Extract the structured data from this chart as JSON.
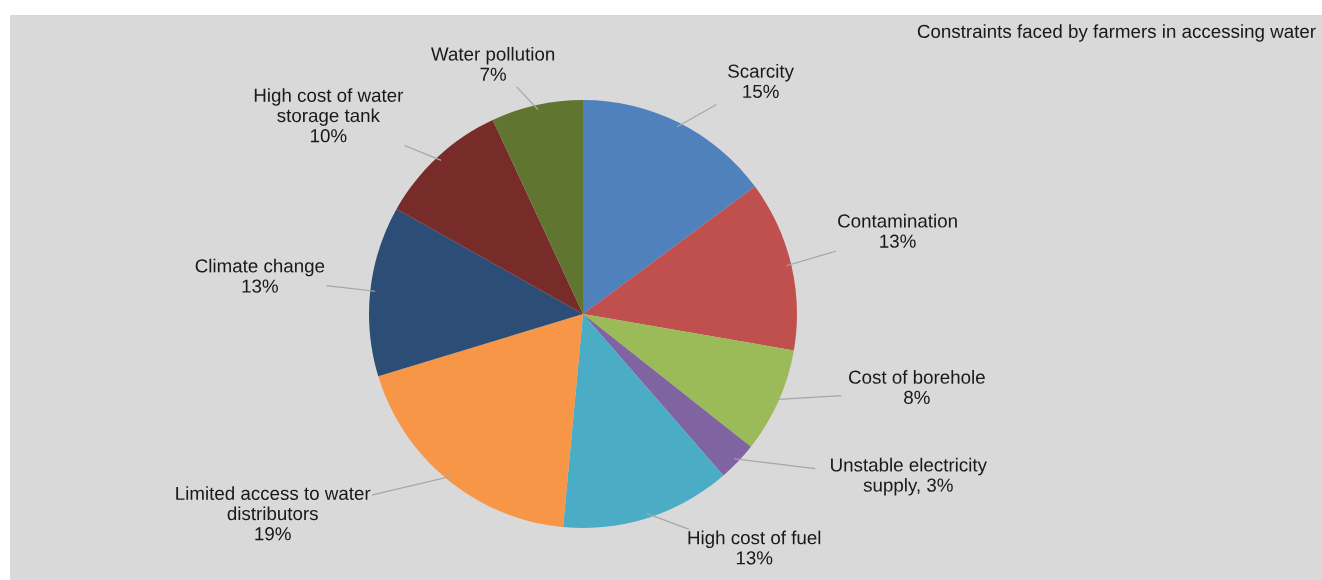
{
  "chart_data": {
    "type": "pie",
    "title": "Constraints faced by farmers in accessing water",
    "categories": [
      "Scarcity",
      "Contamination",
      "Cost of borehole",
      "Unstable electricity\nsupply",
      "High cost of fuel",
      "Limited access to water\ndistributors",
      "Climate change",
      "High cost of water\nstorage tank",
      "Water pollution"
    ],
    "values": [
      15,
      13,
      8,
      3,
      13,
      19,
      13,
      10,
      7
    ],
    "value_labels": [
      "15%",
      "13%",
      "8%",
      "3%",
      "13%",
      "19%",
      "13%",
      "10%",
      "7%"
    ],
    "colors": [
      "#4f81bd",
      "#c0504d",
      "#9bbb59",
      "#8064a2",
      "#4bacc6",
      "#f79646",
      "#2c4d75",
      "#772c2a",
      "#5f7530"
    ],
    "legend": false
  }
}
